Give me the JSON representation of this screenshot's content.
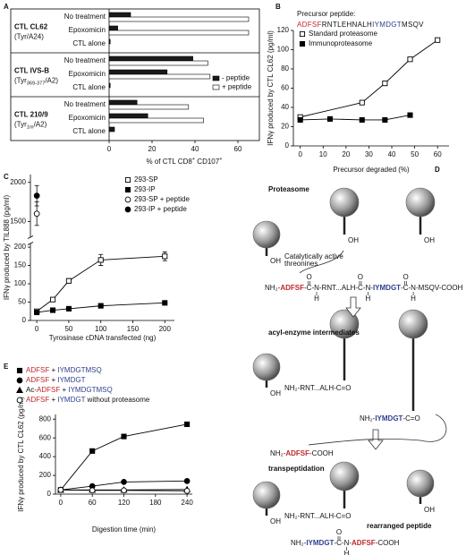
{
  "panel_labels": [
    "A",
    "B",
    "C",
    "D",
    "E"
  ],
  "chart_data": [
    {
      "type": "bar",
      "orientation": "horizontal",
      "categories": [
        "No treatment",
        "Epoxomicin",
        "CTL alone",
        "No treatment",
        "Epoxomicin",
        "CTL alone",
        "No treatment",
        "Epoxomicin",
        "CTL alone"
      ],
      "groups": [
        {
          "name": "CTL CL62",
          "subtitle": [
            {
              "text": "(Tyr/A24)"
            }
          ]
        },
        {
          "name": "CTL IVS-B",
          "subtitle": [
            {
              "text": "(Tyr"
            },
            {
              "text": "369-377",
              "sub": true
            },
            {
              "text": "/A2)"
            }
          ]
        },
        {
          "name": "CTL 210/9",
          "subtitle": [
            {
              "text": "(Tyr"
            },
            {
              "text": "1m",
              "sub": true
            },
            {
              "text": "/A2)"
            }
          ]
        }
      ],
      "series": [
        {
          "name": "- peptide",
          "color": "#1a1a1a",
          "values": [
            10,
            4,
            0.5,
            39,
            27,
            0.5,
            13,
            18,
            2.5
          ]
        },
        {
          "name": "+ peptide",
          "color": "#ffffff",
          "values": [
            65,
            65,
            null,
            46,
            47,
            null,
            37,
            44,
            null
          ]
        }
      ],
      "xlim": [
        0,
        70
      ],
      "xticks": [
        0,
        20,
        40,
        60
      ],
      "xlabel": [
        {
          "text": "% of CTL CD8"
        },
        {
          "text": "+",
          "sup": true
        },
        {
          "text": " CD107"
        },
        {
          "text": "+",
          "sup": true
        }
      ],
      "legend": "center-right"
    },
    {
      "type": "line",
      "title": "Precursor peptide:",
      "sequence": [
        {
          "text": "ADFSF",
          "color": "#c0282d"
        },
        {
          "text": "RNTLEHNALH"
        },
        {
          "text": "IYMDGT",
          "color": "#2e3f8f"
        },
        {
          "text": "MSQV"
        }
      ],
      "series": [
        {
          "name": "Standard proteasome",
          "marker": "square",
          "filled": false,
          "color": "#000000",
          "x": [
            0,
            27,
            37,
            48,
            60
          ],
          "values": [
            30,
            45,
            65,
            90,
            110
          ]
        },
        {
          "name": "Immunoproteasome",
          "marker": "square",
          "filled": true,
          "color": "#000000",
          "x": [
            0,
            13,
            27,
            37,
            48
          ],
          "values": [
            27,
            28,
            27,
            27,
            32
          ]
        }
      ],
      "xlim": [
        -3,
        65
      ],
      "xticks": [
        0,
        10,
        20,
        30,
        40,
        50,
        60
      ],
      "ylim": [
        0,
        120
      ],
      "yticks": [
        0,
        20,
        40,
        60,
        80,
        100,
        120
      ],
      "xlabel": "Precursor degraded (%)",
      "ylabel": "IFNγ produced by CTL CL62 (pg/ml)",
      "legend": "upper-left"
    },
    {
      "type": "line",
      "series": [
        {
          "name": "293-SP",
          "marker": "square",
          "filled": false,
          "color": "#000000",
          "x": [
            0,
            25,
            50,
            100,
            200
          ],
          "values": [
            25,
            57,
            108,
            165,
            175
          ],
          "errors": [
            4,
            4,
            6,
            15,
            12
          ]
        },
        {
          "name": "293-IP",
          "marker": "square",
          "filled": true,
          "color": "#000000",
          "x": [
            0,
            25,
            50,
            100,
            200
          ],
          "values": [
            22,
            28,
            32,
            40,
            48
          ]
        },
        {
          "name": "293-SP + peptide",
          "marker": "circle",
          "filled": false,
          "color": "#000000",
          "x": [
            0
          ],
          "values": [
            1600
          ],
          "errors": [
            150
          ]
        },
        {
          "name": "293-IP + peptide",
          "marker": "circle",
          "filled": true,
          "color": "#000000",
          "x": [
            0
          ],
          "values": [
            1830
          ],
          "errors": [
            130
          ]
        }
      ],
      "xlim": [
        -10,
        215
      ],
      "xticks": [
        0,
        50,
        100,
        150,
        200
      ],
      "ylim_segments": [
        [
          0,
          210
        ],
        [
          1300,
          2100
        ]
      ],
      "yticks": [
        0,
        50,
        100,
        150,
        200,
        1500,
        2000
      ],
      "xlabel": "Tyrosinase cDNA transfected (ng)",
      "ylabel": "IFNγ produced by TIL888 (pg/ml)",
      "legend": "upper-right"
    },
    {
      "type": "line",
      "series": [
        {
          "name_parts": [
            {
              "text": "ADFSF",
              "color": "#c0282d"
            },
            {
              "text": " + "
            },
            {
              "text": "IYMDGTMSQ",
              "color": "#2e3f8f"
            }
          ],
          "marker": "square",
          "filled": true,
          "color": "#000000",
          "x": [
            0,
            60,
            120,
            240
          ],
          "values": [
            45,
            460,
            615,
            745
          ]
        },
        {
          "name_parts": [
            {
              "text": "ADFSF",
              "color": "#c0282d"
            },
            {
              "text": " + "
            },
            {
              "text": "IYMDGT",
              "color": "#2e3f8f"
            }
          ],
          "marker": "circle",
          "filled": true,
          "color": "#000000",
          "x": [
            0,
            60,
            120,
            240
          ],
          "values": [
            45,
            85,
            130,
            140
          ]
        },
        {
          "name_parts": [
            {
              "text": "Ac-"
            },
            {
              "text": "ADFSF",
              "color": "#c0282d"
            },
            {
              "text": " + "
            },
            {
              "text": "IYMDGTMSQ",
              "color": "#2e3f8f"
            }
          ],
          "marker": "triangle",
          "filled": true,
          "color": "#000000",
          "x": [
            0,
            60,
            120,
            240
          ],
          "values": [
            45,
            45,
            45,
            50
          ]
        },
        {
          "name_parts": [
            {
              "text": "ADFSF",
              "color": "#c0282d"
            },
            {
              "text": " + "
            },
            {
              "text": "IYMDGT",
              "color": "#2e3f8f"
            },
            {
              "text": " without proteasome"
            }
          ],
          "marker": "circle",
          "filled": false,
          "color": "#000000",
          "x": [
            0,
            60,
            120,
            240
          ],
          "values": [
            45,
            40,
            40,
            35
          ]
        }
      ],
      "xlim": [
        -10,
        250
      ],
      "xticks": [
        0,
        60,
        120,
        180,
        240
      ],
      "ylim": [
        0,
        850
      ],
      "yticks": [
        0,
        200,
        400,
        600,
        800
      ],
      "xlabel": "Digestion time (min)",
      "ylabel": "IFNγ produced by CTL CL62 (pg/ml)",
      "legend": "above"
    }
  ],
  "diagram": {
    "steps": [
      "Proteasome",
      "acyl-enzyme intermediates",
      "transpeptidation"
    ],
    "annotation": [
      "Catalytically active",
      "threonines"
    ],
    "oh": "OH",
    "atoms": {
      "o": "O",
      "h": "H"
    },
    "product_label": "rearranged peptide",
    "chains": [
      [
        {
          "text": "NH₂-"
        },
        {
          "text": "ADFSF",
          "color": "#c0282d",
          "bold": true
        },
        {
          "text": "-"
        },
        {
          "text": "C",
          "o": true
        },
        {
          "text": "-"
        },
        {
          "text": "N",
          "h": true
        },
        {
          "text": "-RNT...ALH-"
        },
        {
          "text": "C",
          "o": true
        },
        {
          "text": "-"
        },
        {
          "text": "N",
          "h": true
        },
        {
          "text": "-"
        },
        {
          "text": "IYMDGT",
          "color": "#2e3f8f",
          "bold": true
        },
        {
          "text": "-"
        },
        {
          "text": "C",
          "o": true
        },
        {
          "text": "-"
        },
        {
          "text": "N",
          "h": true
        },
        {
          "text": "-MSQV-COOH"
        }
      ],
      [
        {
          "text": "NH₂-RNT...ALH-C=O"
        }
      ],
      [
        {
          "text": "NH₂-"
        },
        {
          "text": "IYMDGT",
          "color": "#2e3f8f",
          "bold": true
        },
        {
          "text": "-C=O"
        }
      ],
      [
        {
          "text": "NH₂-"
        },
        {
          "text": "ADFSF",
          "color": "#c0282d",
          "bold": true
        },
        {
          "text": "-COOH"
        }
      ],
      [
        {
          "text": "NH₂-RNT...ALH-C=O"
        }
      ],
      [
        {
          "text": "NH₂-"
        },
        {
          "text": "IYMDGT",
          "color": "#2e3f8f",
          "bold": true
        },
        {
          "text": "-"
        },
        {
          "text": "C",
          "o": true
        },
        {
          "text": "-"
        },
        {
          "text": "N",
          "h": true
        },
        {
          "text": "-"
        },
        {
          "text": "ADFSF",
          "color": "#c0282d",
          "bold": true
        },
        {
          "text": "-COOH"
        }
      ]
    ]
  }
}
